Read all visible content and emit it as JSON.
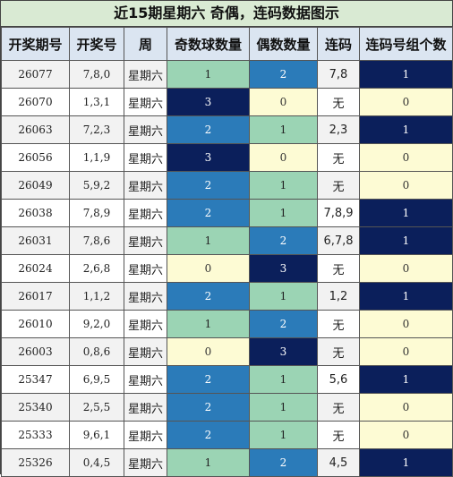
{
  "title": "近15期星期六 奇偶，连码数据图示",
  "headers": [
    "开奖期号",
    "开奖号",
    "周",
    "奇数球数量",
    "偶数数量",
    "连码",
    "连码号组个数"
  ],
  "rows": [
    {
      "issue": "26077",
      "numbers": "7,8,0",
      "weekday": "星期六",
      "odd": "1",
      "even": "2",
      "consec": "7,8",
      "groups": "1"
    },
    {
      "issue": "26070",
      "numbers": "1,3,1",
      "weekday": "星期六",
      "odd": "3",
      "even": "0",
      "consec": "无",
      "groups": "0"
    },
    {
      "issue": "26063",
      "numbers": "7,2,3",
      "weekday": "星期六",
      "odd": "2",
      "even": "1",
      "consec": "2,3",
      "groups": "1"
    },
    {
      "issue": "26056",
      "numbers": "1,1,9",
      "weekday": "星期六",
      "odd": "3",
      "even": "0",
      "consec": "无",
      "groups": "0"
    },
    {
      "issue": "26049",
      "numbers": "5,9,2",
      "weekday": "星期六",
      "odd": "2",
      "even": "1",
      "consec": "无",
      "groups": "0"
    },
    {
      "issue": "26038",
      "numbers": "7,8,9",
      "weekday": "星期六",
      "odd": "2",
      "even": "1",
      "consec": "7,8,9",
      "groups": "1"
    },
    {
      "issue": "26031",
      "numbers": "7,8,6",
      "weekday": "星期六",
      "odd": "1",
      "even": "2",
      "consec": "6,7,8",
      "groups": "1"
    },
    {
      "issue": "26024",
      "numbers": "2,6,8",
      "weekday": "星期六",
      "odd": "0",
      "even": "3",
      "consec": "无",
      "groups": "0"
    },
    {
      "issue": "26017",
      "numbers": "1,1,2",
      "weekday": "星期六",
      "odd": "2",
      "even": "1",
      "consec": "1,2",
      "groups": "1"
    },
    {
      "issue": "26010",
      "numbers": "9,2,0",
      "weekday": "星期六",
      "odd": "1",
      "even": "2",
      "consec": "无",
      "groups": "0"
    },
    {
      "issue": "26003",
      "numbers": "0,8,6",
      "weekday": "星期六",
      "odd": "0",
      "even": "3",
      "consec": "无",
      "groups": "0"
    },
    {
      "issue": "25347",
      "numbers": "6,9,5",
      "weekday": "星期六",
      "odd": "2",
      "even": "1",
      "consec": "5,6",
      "groups": "1"
    },
    {
      "issue": "25340",
      "numbers": "2,5,5",
      "weekday": "星期六",
      "odd": "2",
      "even": "1",
      "consec": "无",
      "groups": "0"
    },
    {
      "issue": "25333",
      "numbers": "9,6,1",
      "weekday": "星期六",
      "odd": "2",
      "even": "1",
      "consec": "无",
      "groups": "0"
    },
    {
      "issue": "25326",
      "numbers": "0,4,5",
      "weekday": "星期六",
      "odd": "1",
      "even": "2",
      "consec": "4,5",
      "groups": "1"
    }
  ],
  "colors": {
    "zero": "#fdfbd4",
    "one": "#9bd4b4",
    "two": "#2b7bb9",
    "three": "#0b1f5b",
    "header_bg": "#dbe5f1",
    "title_bg": "#d9ead3"
  }
}
